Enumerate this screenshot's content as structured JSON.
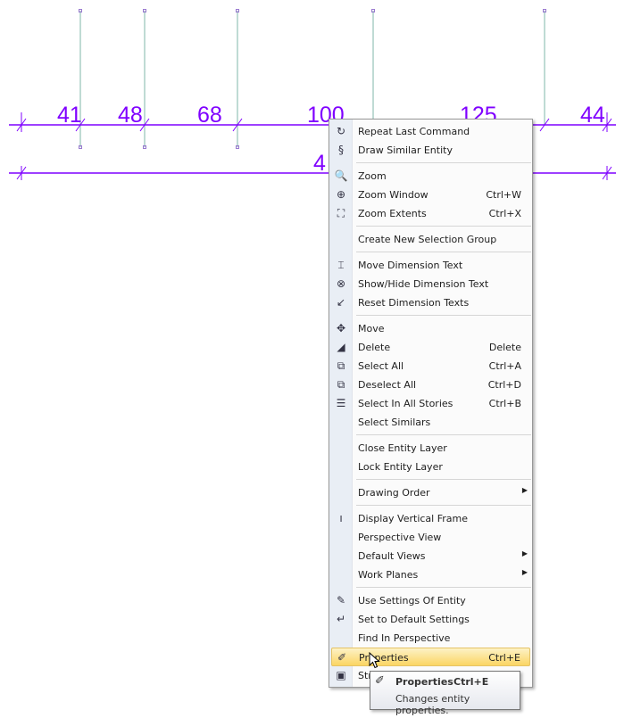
{
  "drawing": {
    "dimension_labels": [
      "41",
      "48",
      "68",
      "100",
      "125",
      "44"
    ],
    "overall_label": "4",
    "line_color": "#7f00ff",
    "grid_color": "#7fb7a8"
  },
  "menu": {
    "items": [
      {
        "label": "Repeat Last Command",
        "icon": "repeat-icon",
        "glyph": "↻"
      },
      {
        "label": "Draw Similar Entity",
        "icon": "draw-similar-icon",
        "glyph": "§"
      },
      {
        "sep": true
      },
      {
        "label": "Zoom",
        "icon": "zoom-icon",
        "glyph": "🔍"
      },
      {
        "label": "Zoom Window",
        "shortcut": "Ctrl+W",
        "icon": "zoom-window-icon",
        "glyph": "⊕"
      },
      {
        "label": "Zoom Extents",
        "shortcut": "Ctrl+X",
        "icon": "zoom-extents-icon",
        "glyph": "⛶"
      },
      {
        "sep": true
      },
      {
        "label": "Create New Selection Group"
      },
      {
        "sep": true
      },
      {
        "label": "Move Dimension Text",
        "icon": "move-dimension-text-icon",
        "glyph": "⌶"
      },
      {
        "label": "Show/Hide Dimension Text",
        "icon": "show-hide-dimension-text-icon",
        "glyph": "⊗"
      },
      {
        "label": "Reset Dimension Texts",
        "icon": "reset-dimension-texts-icon",
        "glyph": "↙"
      },
      {
        "sep": true
      },
      {
        "label": "Move",
        "icon": "move-icon",
        "glyph": "✥"
      },
      {
        "label": "Delete",
        "shortcut": "Delete",
        "icon": "eraser-icon",
        "glyph": "◢"
      },
      {
        "label": "Select All",
        "shortcut": "Ctrl+A",
        "icon": "select-all-icon",
        "glyph": "⧉"
      },
      {
        "label": "Deselect All",
        "shortcut": "Ctrl+D",
        "icon": "deselect-all-icon",
        "glyph": "⧉"
      },
      {
        "label": "Select In All Stories",
        "shortcut": "Ctrl+B",
        "icon": "select-stories-icon",
        "glyph": "☰"
      },
      {
        "label": "Select Similars"
      },
      {
        "sep": true
      },
      {
        "label": "Close Entity Layer"
      },
      {
        "label": "Lock Entity Layer"
      },
      {
        "sep": true
      },
      {
        "label": "Drawing Order",
        "submenu": true
      },
      {
        "sep": true
      },
      {
        "label": "Display Vertical Frame",
        "icon": "vertical-frame-icon",
        "glyph": "ı"
      },
      {
        "label": "Perspective View"
      },
      {
        "label": "Default Views",
        "submenu": true
      },
      {
        "label": "Work Planes",
        "submenu": true
      },
      {
        "sep": true
      },
      {
        "label": "Use Settings Of Entity",
        "icon": "eyedropper-icon",
        "glyph": "✎"
      },
      {
        "label": "Set to Default Settings",
        "icon": "default-settings-icon",
        "glyph": "↵"
      },
      {
        "label": "Find In Perspective"
      },
      {
        "label": "Properties",
        "shortcut": "Ctrl+E",
        "icon": "properties-icon",
        "glyph": "✐",
        "highlighted": true
      },
      {
        "label": "Str",
        "icon": "stretch-icon",
        "glyph": "▣"
      }
    ]
  },
  "tooltip": {
    "title": "Properties",
    "shortcut": "Ctrl+E",
    "description": "Changes entity properties."
  }
}
